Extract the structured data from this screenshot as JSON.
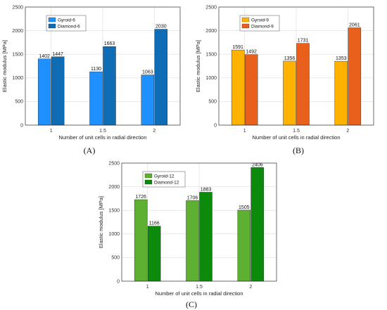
{
  "chart_data": [
    {
      "type": "bar",
      "panel": "(A)",
      "categories": [
        "1",
        "1.5",
        "2"
      ],
      "series": [
        {
          "name": "Gyroid-6",
          "values": [
            1402,
            1130,
            1063
          ],
          "color": "#1E90FF"
        },
        {
          "name": "Diamond-6",
          "values": [
            1447,
            1663,
            2030
          ],
          "color": "#0E6DB5"
        }
      ],
      "xlabel": "Number of unit cells in radial direction",
      "ylabel": "Elastic modulus [MPa]",
      "ylim": [
        0,
        2500
      ],
      "yticks": [
        0,
        500,
        1000,
        1500,
        2000,
        2500
      ],
      "grid": true,
      "legend": "top-left"
    },
    {
      "type": "bar",
      "panel": "(B)",
      "categories": [
        "1",
        "1.5",
        "2"
      ],
      "series": [
        {
          "name": "Gyroid-9",
          "values": [
            1591,
            1356,
            1353
          ],
          "color": "#FFB300"
        },
        {
          "name": "Diamond-9",
          "values": [
            1492,
            1731,
            2061
          ],
          "color": "#E8601C"
        }
      ],
      "xlabel": "Number of unit cells in radial direction",
      "ylabel": "Elastic modulus [MPa]",
      "ylim": [
        0,
        2500
      ],
      "yticks": [
        0,
        500,
        1000,
        1500,
        2000,
        2500
      ],
      "grid": true,
      "legend": "top-left"
    },
    {
      "type": "bar",
      "panel": "(C)",
      "categories": [
        "1",
        "1.5",
        "2"
      ],
      "series": [
        {
          "name": "Gyroid-12",
          "values": [
            1726,
            1706,
            1505
          ],
          "color": "#5DB031"
        },
        {
          "name": "Diamond-12",
          "values": [
            1166,
            1883,
            2406
          ],
          "color": "#0B8A0B"
        }
      ],
      "xlabel": "Number of unit cells in radial direction",
      "ylabel": "Elastic modulus [MPa]",
      "ylim": [
        0,
        2500
      ],
      "yticks": [
        0,
        500,
        1000,
        1500,
        2000,
        2500
      ],
      "grid": true,
      "legend": "top-left"
    }
  ]
}
